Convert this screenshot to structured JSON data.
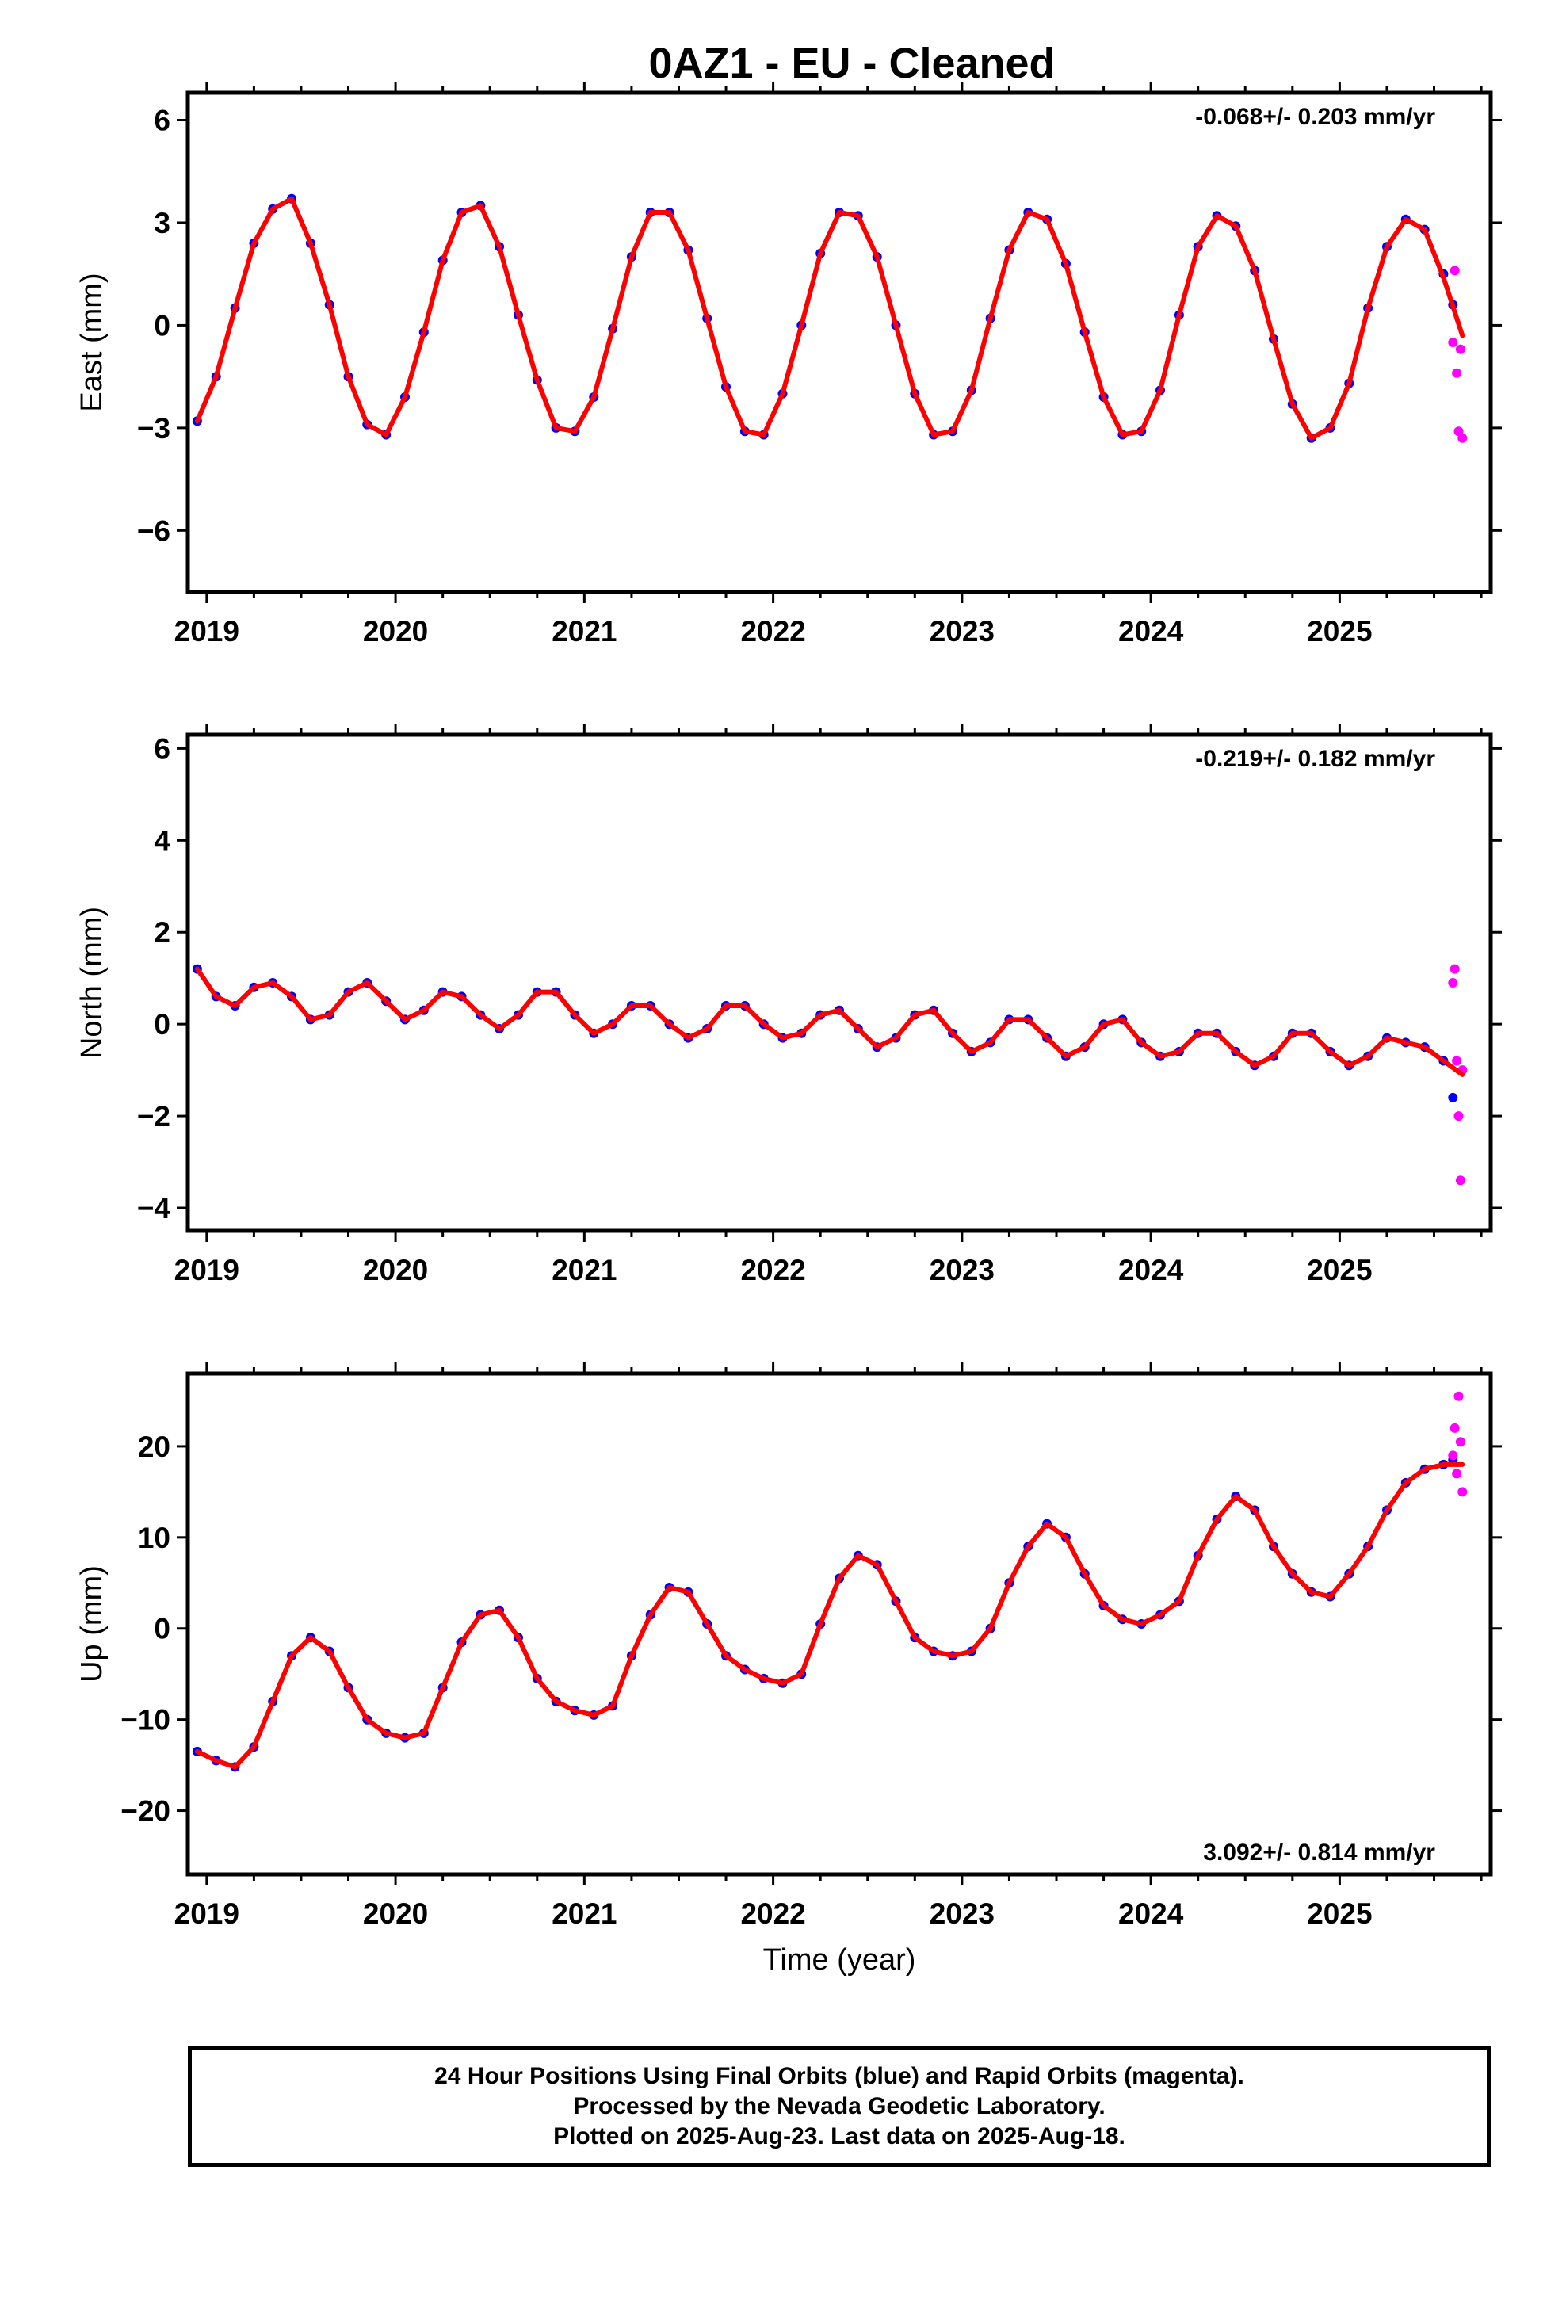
{
  "title": "0AZ1  - EU - Cleaned",
  "footer": {
    "line1": "24 Hour Positions Using Final Orbits (blue) and Rapid Orbits (magenta).",
    "line2": "Processed by the Nevada Geodetic Laboratory.",
    "line3": "Plotted on 2025-Aug-23. Last data on 2025-Aug-18."
  },
  "colors": {
    "final_orbits": "#0000ff",
    "rapid_orbits": "#ff00ff",
    "model_fit": "#ff0000"
  },
  "chart_data": [
    {
      "type": "scatter",
      "ylabel": "East (mm)",
      "xlabel": "",
      "rate_text": "-0.068+/- 0.203 mm/yr",
      "rate_position": "top-right",
      "xlim": [
        2018.9,
        2025.8
      ],
      "ylim": [
        -7.8,
        6.8
      ],
      "xticks": [
        2019,
        2020,
        2021,
        2022,
        2023,
        2024,
        2025
      ],
      "yticks": [
        -6,
        -3,
        0,
        3,
        6
      ],
      "series": [
        {
          "name": "Final Orbits",
          "color": "#0000ff",
          "kind": "points",
          "x": [
            2018.95,
            2019.05,
            2019.15,
            2019.25,
            2019.35,
            2019.45,
            2019.55,
            2019.65,
            2019.75,
            2019.85,
            2019.95,
            2020.05,
            2020.15,
            2020.25,
            2020.35,
            2020.45,
            2020.55,
            2020.65,
            2020.75,
            2020.85,
            2020.95,
            2021.05,
            2021.15,
            2021.25,
            2021.35,
            2021.45,
            2021.55,
            2021.65,
            2021.75,
            2021.85,
            2021.95,
            2022.05,
            2022.15,
            2022.25,
            2022.35,
            2022.45,
            2022.55,
            2022.65,
            2022.75,
            2022.85,
            2022.95,
            2023.05,
            2023.15,
            2023.25,
            2023.35,
            2023.45,
            2023.55,
            2023.65,
            2023.75,
            2023.85,
            2023.95,
            2024.05,
            2024.15,
            2024.25,
            2024.35,
            2024.45,
            2024.55,
            2024.65,
            2024.75,
            2024.85,
            2024.95,
            2025.05,
            2025.15,
            2025.25,
            2025.35,
            2025.45,
            2025.55,
            2025.6
          ],
          "y": [
            -2.8,
            -1.5,
            0.5,
            2.4,
            3.4,
            3.7,
            2.4,
            0.6,
            -1.5,
            -2.9,
            -3.2,
            -2.1,
            -0.2,
            1.9,
            3.3,
            3.5,
            2.3,
            0.3,
            -1.6,
            -3.0,
            -3.1,
            -2.1,
            -0.1,
            2.0,
            3.3,
            3.3,
            2.2,
            0.2,
            -1.8,
            -3.1,
            -3.2,
            -2.0,
            0.0,
            2.1,
            3.3,
            3.2,
            2.0,
            0.0,
            -2.0,
            -3.2,
            -3.1,
            -1.9,
            0.2,
            2.2,
            3.3,
            3.1,
            1.8,
            -0.2,
            -2.1,
            -3.2,
            -3.1,
            -1.9,
            0.3,
            2.3,
            3.2,
            2.9,
            1.6,
            -0.4,
            -2.3,
            -3.3,
            -3.0,
            -1.7,
            0.5,
            2.3,
            3.1,
            2.8,
            1.5,
            0.6
          ]
        },
        {
          "name": "Rapid Orbits",
          "color": "#ff00ff",
          "kind": "points",
          "x": [
            2025.6,
            2025.61,
            2025.62,
            2025.63,
            2025.64,
            2025.65
          ],
          "y": [
            -0.5,
            1.6,
            -1.4,
            -3.1,
            -0.7,
            -3.3
          ]
        },
        {
          "name": "Model fit",
          "color": "#ff0000",
          "kind": "line",
          "x": [
            2018.95,
            2019.05,
            2019.15,
            2019.25,
            2019.35,
            2019.45,
            2019.55,
            2019.65,
            2019.75,
            2019.85,
            2019.95,
            2020.05,
            2020.15,
            2020.25,
            2020.35,
            2020.45,
            2020.55,
            2020.65,
            2020.75,
            2020.85,
            2020.95,
            2021.05,
            2021.15,
            2021.25,
            2021.35,
            2021.45,
            2021.55,
            2021.65,
            2021.75,
            2021.85,
            2021.95,
            2022.05,
            2022.15,
            2022.25,
            2022.35,
            2022.45,
            2022.55,
            2022.65,
            2022.75,
            2022.85,
            2022.95,
            2023.05,
            2023.15,
            2023.25,
            2023.35,
            2023.45,
            2023.55,
            2023.65,
            2023.75,
            2023.85,
            2023.95,
            2024.05,
            2024.15,
            2024.25,
            2024.35,
            2024.45,
            2024.55,
            2024.65,
            2024.75,
            2024.85,
            2024.95,
            2025.05,
            2025.15,
            2025.25,
            2025.35,
            2025.45,
            2025.55,
            2025.65
          ],
          "y": [
            -2.8,
            -1.5,
            0.5,
            2.4,
            3.4,
            3.7,
            2.4,
            0.6,
            -1.5,
            -2.9,
            -3.2,
            -2.1,
            -0.2,
            1.9,
            3.3,
            3.5,
            2.3,
            0.3,
            -1.6,
            -3.0,
            -3.1,
            -2.1,
            -0.1,
            2.0,
            3.3,
            3.3,
            2.2,
            0.2,
            -1.8,
            -3.1,
            -3.2,
            -2.0,
            0.0,
            2.1,
            3.3,
            3.2,
            2.0,
            0.0,
            -2.0,
            -3.2,
            -3.1,
            -1.9,
            0.2,
            2.2,
            3.3,
            3.1,
            1.8,
            -0.2,
            -2.1,
            -3.2,
            -3.1,
            -1.9,
            0.3,
            2.3,
            3.2,
            2.9,
            1.6,
            -0.4,
            -2.3,
            -3.3,
            -3.0,
            -1.7,
            0.5,
            2.3,
            3.1,
            2.8,
            1.4,
            -0.3
          ]
        }
      ]
    },
    {
      "type": "scatter",
      "ylabel": "North (mm)",
      "xlabel": "",
      "rate_text": "-0.219+/- 0.182 mm/yr",
      "rate_position": "top-right",
      "xlim": [
        2018.9,
        2025.8
      ],
      "ylim": [
        -4.5,
        6.3
      ],
      "xticks": [
        2019,
        2020,
        2021,
        2022,
        2023,
        2024,
        2025
      ],
      "yticks": [
        -4,
        -2,
        0,
        2,
        4,
        6
      ],
      "series": [
        {
          "name": "Final Orbits",
          "color": "#0000ff",
          "kind": "points",
          "x": [
            2018.95,
            2019.05,
            2019.15,
            2019.25,
            2019.35,
            2019.45,
            2019.55,
            2019.65,
            2019.75,
            2019.85,
            2019.95,
            2020.05,
            2020.15,
            2020.25,
            2020.35,
            2020.45,
            2020.55,
            2020.65,
            2020.75,
            2020.85,
            2020.95,
            2021.05,
            2021.15,
            2021.25,
            2021.35,
            2021.45,
            2021.55,
            2021.65,
            2021.75,
            2021.85,
            2021.95,
            2022.05,
            2022.15,
            2022.25,
            2022.35,
            2022.45,
            2022.55,
            2022.65,
            2022.75,
            2022.85,
            2022.95,
            2023.05,
            2023.15,
            2023.25,
            2023.35,
            2023.45,
            2023.55,
            2023.65,
            2023.75,
            2023.85,
            2023.95,
            2024.05,
            2024.15,
            2024.25,
            2024.35,
            2024.45,
            2024.55,
            2024.65,
            2024.75,
            2024.85,
            2024.95,
            2025.05,
            2025.15,
            2025.25,
            2025.35,
            2025.45,
            2025.55,
            2025.6
          ],
          "y": [
            1.2,
            0.6,
            0.4,
            0.8,
            0.9,
            0.6,
            0.1,
            0.2,
            0.7,
            0.9,
            0.5,
            0.1,
            0.3,
            0.7,
            0.6,
            0.2,
            -0.1,
            0.2,
            0.7,
            0.7,
            0.2,
            -0.2,
            0.0,
            0.4,
            0.4,
            0.0,
            -0.3,
            -0.1,
            0.4,
            0.4,
            0.0,
            -0.3,
            -0.2,
            0.2,
            0.3,
            -0.1,
            -0.5,
            -0.3,
            0.2,
            0.3,
            -0.2,
            -0.6,
            -0.4,
            0.1,
            0.1,
            -0.3,
            -0.7,
            -0.5,
            0.0,
            0.1,
            -0.4,
            -0.7,
            -0.6,
            -0.2,
            -0.2,
            -0.6,
            -0.9,
            -0.7,
            -0.2,
            -0.2,
            -0.6,
            -0.9,
            -0.7,
            -0.3,
            -0.4,
            -0.5,
            -0.8,
            -1.6
          ]
        },
        {
          "name": "Rapid Orbits",
          "color": "#ff00ff",
          "kind": "points",
          "x": [
            2025.6,
            2025.61,
            2025.62,
            2025.63,
            2025.64,
            2025.65
          ],
          "y": [
            0.9,
            1.2,
            -0.8,
            -2.0,
            -3.4,
            -1.0
          ]
        },
        {
          "name": "Model fit",
          "color": "#ff0000",
          "kind": "line",
          "x": [
            2018.95,
            2019.05,
            2019.15,
            2019.25,
            2019.35,
            2019.45,
            2019.55,
            2019.65,
            2019.75,
            2019.85,
            2019.95,
            2020.05,
            2020.15,
            2020.25,
            2020.35,
            2020.45,
            2020.55,
            2020.65,
            2020.75,
            2020.85,
            2020.95,
            2021.05,
            2021.15,
            2021.25,
            2021.35,
            2021.45,
            2021.55,
            2021.65,
            2021.75,
            2021.85,
            2021.95,
            2022.05,
            2022.15,
            2022.25,
            2022.35,
            2022.45,
            2022.55,
            2022.65,
            2022.75,
            2022.85,
            2022.95,
            2023.05,
            2023.15,
            2023.25,
            2023.35,
            2023.45,
            2023.55,
            2023.65,
            2023.75,
            2023.85,
            2023.95,
            2024.05,
            2024.15,
            2024.25,
            2024.35,
            2024.45,
            2024.55,
            2024.65,
            2024.75,
            2024.85,
            2024.95,
            2025.05,
            2025.15,
            2025.25,
            2025.35,
            2025.45,
            2025.55,
            2025.65
          ],
          "y": [
            1.2,
            0.6,
            0.4,
            0.8,
            0.9,
            0.6,
            0.1,
            0.2,
            0.7,
            0.9,
            0.5,
            0.1,
            0.3,
            0.7,
            0.6,
            0.2,
            -0.1,
            0.2,
            0.7,
            0.7,
            0.2,
            -0.2,
            0.0,
            0.4,
            0.4,
            0.0,
            -0.3,
            -0.1,
            0.4,
            0.4,
            0.0,
            -0.3,
            -0.2,
            0.2,
            0.3,
            -0.1,
            -0.5,
            -0.3,
            0.2,
            0.3,
            -0.2,
            -0.6,
            -0.4,
            0.1,
            0.1,
            -0.3,
            -0.7,
            -0.5,
            0.0,
            0.1,
            -0.4,
            -0.7,
            -0.6,
            -0.2,
            -0.2,
            -0.6,
            -0.9,
            -0.7,
            -0.2,
            -0.2,
            -0.6,
            -0.9,
            -0.7,
            -0.3,
            -0.4,
            -0.5,
            -0.8,
            -1.1
          ]
        }
      ]
    },
    {
      "type": "scatter",
      "ylabel": "Up (mm)",
      "xlabel": "Time (year)",
      "rate_text": "3.092+/- 0.814 mm/yr",
      "rate_position": "bottom-right",
      "xlim": [
        2018.9,
        2025.8
      ],
      "ylim": [
        -27,
        28
      ],
      "xticks": [
        2019,
        2020,
        2021,
        2022,
        2023,
        2024,
        2025
      ],
      "yticks": [
        -20,
        -10,
        0,
        10,
        20
      ],
      "series": [
        {
          "name": "Final Orbits",
          "color": "#0000ff",
          "kind": "points",
          "x": [
            2018.95,
            2019.05,
            2019.15,
            2019.25,
            2019.35,
            2019.45,
            2019.55,
            2019.65,
            2019.75,
            2019.85,
            2019.95,
            2020.05,
            2020.15,
            2020.25,
            2020.35,
            2020.45,
            2020.55,
            2020.65,
            2020.75,
            2020.85,
            2020.95,
            2021.05,
            2021.15,
            2021.25,
            2021.35,
            2021.45,
            2021.55,
            2021.65,
            2021.75,
            2021.85,
            2021.95,
            2022.05,
            2022.15,
            2022.25,
            2022.35,
            2022.45,
            2022.55,
            2022.65,
            2022.75,
            2022.85,
            2022.95,
            2023.05,
            2023.15,
            2023.25,
            2023.35,
            2023.45,
            2023.55,
            2023.65,
            2023.75,
            2023.85,
            2023.95,
            2024.05,
            2024.15,
            2024.25,
            2024.35,
            2024.45,
            2024.55,
            2024.65,
            2024.75,
            2024.85,
            2024.95,
            2025.05,
            2025.15,
            2025.25,
            2025.35,
            2025.45,
            2025.55,
            2025.6
          ],
          "y": [
            -13.5,
            -14.5,
            -15.2,
            -13.0,
            -8.0,
            -3.0,
            -1.0,
            -2.5,
            -6.5,
            -10.0,
            -11.5,
            -12.0,
            -11.5,
            -6.5,
            -1.5,
            1.5,
            2.0,
            -1.0,
            -5.5,
            -8.0,
            -9.0,
            -9.5,
            -8.5,
            -3.0,
            1.5,
            4.5,
            4.0,
            0.5,
            -3.0,
            -4.5,
            -5.5,
            -6.0,
            -5.0,
            0.5,
            5.5,
            8.0,
            7.0,
            3.0,
            -1.0,
            -2.5,
            -3.0,
            -2.5,
            0.0,
            5.0,
            9.0,
            11.5,
            10.0,
            6.0,
            2.5,
            1.0,
            0.5,
            1.5,
            3.0,
            8.0,
            12.0,
            14.5,
            13.0,
            9.0,
            6.0,
            4.0,
            3.5,
            6.0,
            9.0,
            13.0,
            16.0,
            17.5,
            18.0,
            18.5
          ]
        },
        {
          "name": "Rapid Orbits",
          "color": "#ff00ff",
          "kind": "points",
          "x": [
            2025.6,
            2025.61,
            2025.62,
            2025.63,
            2025.64,
            2025.65
          ],
          "y": [
            19.0,
            22.0,
            17.0,
            25.5,
            20.5,
            15.0
          ]
        },
        {
          "name": "Model fit",
          "color": "#ff0000",
          "kind": "line",
          "x": [
            2018.95,
            2019.05,
            2019.15,
            2019.25,
            2019.35,
            2019.45,
            2019.55,
            2019.65,
            2019.75,
            2019.85,
            2019.95,
            2020.05,
            2020.15,
            2020.25,
            2020.35,
            2020.45,
            2020.55,
            2020.65,
            2020.75,
            2020.85,
            2020.95,
            2021.05,
            2021.15,
            2021.25,
            2021.35,
            2021.45,
            2021.55,
            2021.65,
            2021.75,
            2021.85,
            2021.95,
            2022.05,
            2022.15,
            2022.25,
            2022.35,
            2022.45,
            2022.55,
            2022.65,
            2022.75,
            2022.85,
            2022.95,
            2023.05,
            2023.15,
            2023.25,
            2023.35,
            2023.45,
            2023.55,
            2023.65,
            2023.75,
            2023.85,
            2023.95,
            2024.05,
            2024.15,
            2024.25,
            2024.35,
            2024.45,
            2024.55,
            2024.65,
            2024.75,
            2024.85,
            2024.95,
            2025.05,
            2025.15,
            2025.25,
            2025.35,
            2025.45,
            2025.55,
            2025.65
          ],
          "y": [
            -13.5,
            -14.5,
            -15.2,
            -13.0,
            -8.0,
            -3.0,
            -1.0,
            -2.5,
            -6.5,
            -10.0,
            -11.5,
            -12.0,
            -11.5,
            -6.5,
            -1.5,
            1.5,
            2.0,
            -1.0,
            -5.5,
            -8.0,
            -9.0,
            -9.5,
            -8.5,
            -3.0,
            1.5,
            4.5,
            4.0,
            0.5,
            -3.0,
            -4.5,
            -5.5,
            -6.0,
            -5.0,
            0.5,
            5.5,
            8.0,
            7.0,
            3.0,
            -1.0,
            -2.5,
            -3.0,
            -2.5,
            0.0,
            5.0,
            9.0,
            11.5,
            10.0,
            6.0,
            2.5,
            1.0,
            0.5,
            1.5,
            3.0,
            8.0,
            12.0,
            14.5,
            13.0,
            9.0,
            6.0,
            4.0,
            3.5,
            6.0,
            9.0,
            13.0,
            16.0,
            17.5,
            18.0,
            18.0
          ]
        }
      ]
    }
  ]
}
